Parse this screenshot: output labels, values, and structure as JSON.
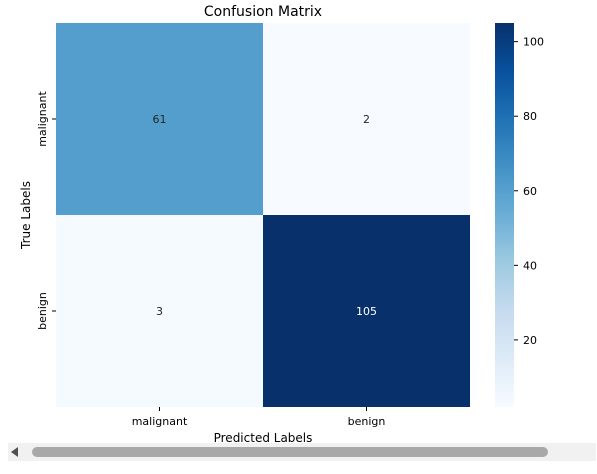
{
  "chart_data": {
    "type": "heatmap",
    "title": "Confusion Matrix",
    "xlabel": "Predicted Labels",
    "ylabel": "True Labels",
    "x_categories": [
      "malignant",
      "benign"
    ],
    "y_categories": [
      "malignant",
      "benign"
    ],
    "values": [
      [
        61,
        2
      ],
      [
        3,
        105
      ]
    ],
    "colorbar": {
      "min": 2,
      "max": 105,
      "ticks": [
        20,
        40,
        60,
        80,
        100
      ],
      "colormap": "Blues"
    },
    "annotations": true,
    "legend": "colorbar-right"
  },
  "colors": {
    "low": "#f7fbff",
    "mid": "#6baed6",
    "high": "#08306b",
    "annotation_dark": "#262626",
    "annotation_light": "#ffffff",
    "scrollbar_thumb": "#a8a8a8"
  },
  "scrollbar": {
    "orientation": "horizontal",
    "arrow": "left-arrow-icon"
  }
}
